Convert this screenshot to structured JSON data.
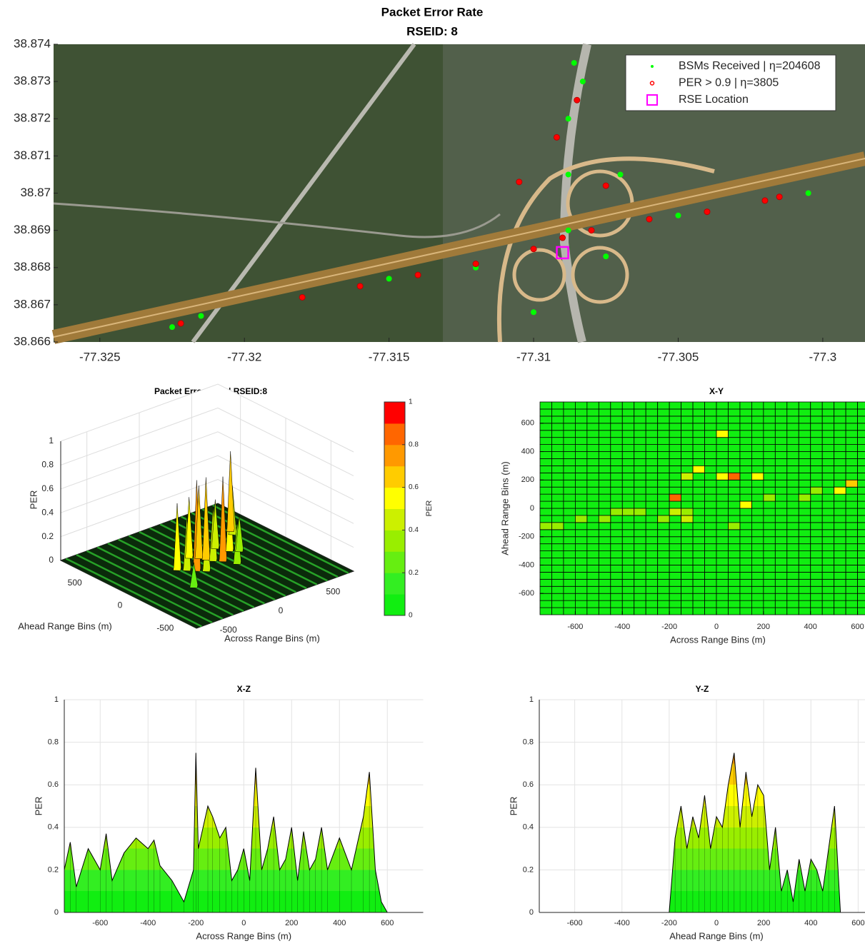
{
  "chart_data": [
    {
      "type": "scatter",
      "title": "Packet Error Rate",
      "subtitle": "RSEID: 8",
      "xlim": [
        -77.3266,
        -77.29854
      ],
      "ylim": [
        38.866,
        38.874
      ],
      "xticks": [
        -77.325,
        -77.32,
        -77.315,
        -77.31,
        -77.305,
        -77.3
      ],
      "yticks": [
        38.866,
        38.867,
        38.868,
        38.869,
        38.87,
        38.871,
        38.872,
        38.873,
        38.874
      ],
      "legend": "upper right",
      "series": [
        {
          "name": "BSMs Received | η=204608",
          "color": "#00ff00",
          "marker": "dot",
          "x": [
            -77.3225,
            -77.3215,
            -77.318,
            -77.315,
            -77.312,
            -77.3088,
            -77.3088,
            -77.3088,
            -77.3086,
            -77.3083,
            -77.307,
            -77.305,
            -77.302,
            -77.3005,
            -77.31,
            -77.3075
          ],
          "y": [
            38.8664,
            38.8667,
            38.8672,
            38.8677,
            38.868,
            38.869,
            38.8705,
            38.872,
            38.8735,
            38.873,
            38.8705,
            38.8694,
            38.8698,
            38.87,
            38.8668,
            38.8683
          ]
        },
        {
          "name": "PER > 0.9 | η=3805",
          "color": "#ff0000",
          "marker": "circle",
          "x": [
            -77.3222,
            -77.318,
            -77.316,
            -77.314,
            -77.312,
            -77.31,
            -77.309,
            -77.308,
            -77.306,
            -77.304,
            -77.302,
            -77.3015,
            -77.3105,
            -77.3075,
            -77.3092,
            -77.3085
          ],
          "y": [
            38.8665,
            38.8672,
            38.8675,
            38.8678,
            38.8681,
            38.8685,
            38.8688,
            38.869,
            38.8693,
            38.8695,
            38.8698,
            38.8699,
            38.8703,
            38.8702,
            38.8715,
            38.8725
          ]
        },
        {
          "name": "RSE Location",
          "color": "#ff00ff",
          "marker": "square",
          "x": [
            -77.309
          ],
          "y": [
            38.8684
          ]
        }
      ]
    },
    {
      "type": "surface3d",
      "title": "Packet Error Rate | RSEID:8",
      "xlabel": "Across Range Bins (m)",
      "ylabel": "Ahead Range Bins (m)",
      "zlabel": "PER",
      "xlim": [
        -750,
        750
      ],
      "ylim": [
        -750,
        750
      ],
      "zlim": [
        0,
        1
      ],
      "xticks": [
        -500,
        0,
        500
      ],
      "yticks": [
        -500,
        0,
        500
      ],
      "zticks": [
        0,
        0.2,
        0.4,
        0.6,
        0.8,
        1
      ],
      "colorbar": {
        "label": "PER",
        "ticks": [
          0,
          0.2,
          0.4,
          0.6,
          0.8,
          1
        ],
        "colormap": [
          "#11ee11",
          "#33ee22",
          "#66ee11",
          "#99ee00",
          "#ccf000",
          "#ffff00",
          "#ffcc00",
          "#ff9900",
          "#ff6600",
          "#ff0000"
        ]
      },
      "peaks": {
        "x": [
          -200,
          -150,
          -100,
          -50,
          0,
          50,
          75,
          100,
          150,
          200,
          250,
          300,
          350,
          500,
          525,
          -300
        ],
        "y": [
          100,
          50,
          0,
          -50,
          200,
          150,
          100,
          50,
          0,
          -100,
          200,
          100,
          50,
          300,
          350,
          -200
        ],
        "z": [
          0.55,
          0.45,
          0.75,
          0.4,
          0.5,
          0.6,
          0.68,
          0.45,
          0.7,
          0.35,
          0.4,
          0.5,
          0.3,
          0.4,
          0.66,
          0.2
        ]
      }
    },
    {
      "type": "heatmap",
      "title": "X-Y",
      "xlabel": "Across Range Bins (m)",
      "ylabel": "Ahead Range Bins (m)",
      "xlim": [
        -750,
        750
      ],
      "ylim": [
        -750,
        750
      ],
      "xticks": [
        -600,
        -400,
        -200,
        0,
        200,
        400,
        600
      ],
      "yticks": [
        -600,
        -400,
        -200,
        0,
        200,
        400,
        600
      ],
      "bins": [
        -750,
        -700,
        -650,
        -600,
        -550,
        -500,
        -450,
        -400,
        -350,
        -300,
        -250,
        -200,
        -150,
        -100,
        -50,
        0,
        50,
        100,
        150,
        200,
        250,
        300,
        350,
        400,
        450,
        500,
        550,
        600,
        650,
        700,
        750
      ],
      "cells": {
        "x": [
          25,
          -125,
          -75,
          25,
          75,
          175,
          -175,
          125,
          225,
          575,
          525,
          -175,
          -125,
          -375,
          -425,
          -325,
          -675,
          -725,
          -575,
          -475,
          -225,
          -125,
          375,
          425,
          75
        ],
        "y": [
          525,
          225,
          275,
          225,
          225,
          225,
          75,
          25,
          75,
          175,
          125,
          -25,
          -75,
          -25,
          -25,
          -25,
          -125,
          -125,
          -75,
          -75,
          -75,
          -25,
          75,
          125,
          -125
        ],
        "values": [
          0.5,
          0.45,
          0.55,
          0.5,
          0.8,
          0.5,
          0.85,
          0.55,
          0.3,
          0.6,
          0.55,
          0.45,
          0.4,
          0.35,
          0.35,
          0.3,
          0.35,
          0.3,
          0.3,
          0.3,
          0.3,
          0.35,
          0.3,
          0.3,
          0.35
        ]
      }
    },
    {
      "type": "area",
      "title": "X-Z",
      "xlabel": "Across Range Bins (m)",
      "ylabel": "PER",
      "xlim": [
        -750,
        750
      ],
      "ylim": [
        0,
        1
      ],
      "xticks": [
        -600,
        -400,
        -200,
        0,
        200,
        400,
        600
      ],
      "yticks": [
        0,
        0.2,
        0.4,
        0.6,
        0.8,
        1
      ],
      "grid": true,
      "x": [
        -750,
        -725,
        -700,
        -650,
        -600,
        -575,
        -550,
        -500,
        -450,
        -400,
        -375,
        -350,
        -300,
        -250,
        -210,
        -200,
        -190,
        -150,
        -130,
        -100,
        -75,
        -50,
        -25,
        0,
        25,
        50,
        75,
        100,
        125,
        150,
        175,
        200,
        225,
        250,
        275,
        300,
        325,
        350,
        400,
        450,
        500,
        525,
        550,
        575,
        600
      ],
      "values": [
        0.2,
        0.33,
        0.12,
        0.3,
        0.2,
        0.37,
        0.15,
        0.28,
        0.35,
        0.3,
        0.34,
        0.22,
        0.15,
        0.05,
        0.2,
        0.75,
        0.3,
        0.5,
        0.45,
        0.35,
        0.4,
        0.15,
        0.2,
        0.3,
        0.15,
        0.68,
        0.2,
        0.3,
        0.45,
        0.2,
        0.25,
        0.4,
        0.15,
        0.38,
        0.2,
        0.25,
        0.4,
        0.2,
        0.35,
        0.2,
        0.45,
        0.66,
        0.2,
        0.05,
        0
      ]
    },
    {
      "type": "area",
      "title": "Y-Z",
      "xlabel": "Ahead Range Bins (m)",
      "ylabel": "PER",
      "xlim": [
        -750,
        750
      ],
      "ylim": [
        0,
        1
      ],
      "xticks": [
        -600,
        -400,
        -200,
        0,
        200,
        400,
        600
      ],
      "yticks": [
        0,
        0.2,
        0.4,
        0.6,
        0.8,
        1
      ],
      "grid": true,
      "x": [
        -200,
        -175,
        -150,
        -125,
        -100,
        -75,
        -50,
        -25,
        0,
        25,
        50,
        75,
        100,
        125,
        150,
        175,
        200,
        225,
        250,
        275,
        300,
        325,
        350,
        375,
        400,
        425,
        450,
        475,
        500,
        525
      ],
      "values": [
        0,
        0.35,
        0.5,
        0.3,
        0.45,
        0.35,
        0.55,
        0.3,
        0.45,
        0.4,
        0.6,
        0.75,
        0.4,
        0.66,
        0.45,
        0.6,
        0.55,
        0.2,
        0.4,
        0.1,
        0.2,
        0.05,
        0.25,
        0.1,
        0.25,
        0.2,
        0.1,
        0.3,
        0.5,
        0
      ]
    }
  ]
}
